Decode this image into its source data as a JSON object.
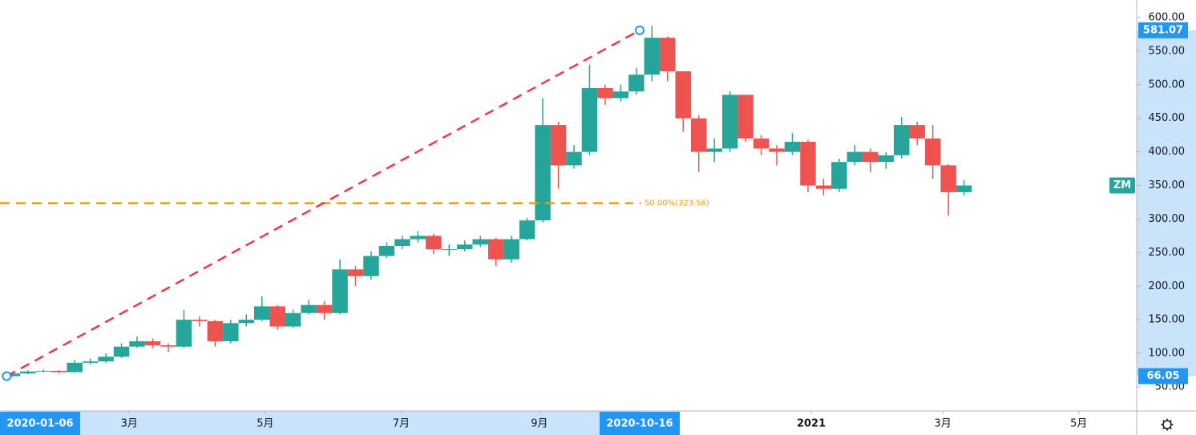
{
  "chart_data": {
    "type": "candlestick",
    "symbol": "ZM",
    "x": [
      "2020-01-06",
      "2020-01-13",
      "2020-01-20",
      "2020-01-27",
      "2020-02-03",
      "2020-02-10",
      "2020-02-17",
      "2020-02-24",
      "2020-03-02",
      "2020-03-09",
      "2020-03-16",
      "2020-03-23",
      "2020-03-30",
      "2020-04-06",
      "2020-04-13",
      "2020-04-20",
      "2020-04-27",
      "2020-05-04",
      "2020-05-11",
      "2020-05-18",
      "2020-05-25",
      "2020-06-01",
      "2020-06-08",
      "2020-06-15",
      "2020-06-22",
      "2020-06-29",
      "2020-07-06",
      "2020-07-13",
      "2020-07-20",
      "2020-07-27",
      "2020-08-03",
      "2020-08-10",
      "2020-08-17",
      "2020-08-24",
      "2020-08-31",
      "2020-09-07",
      "2020-09-14",
      "2020-09-21",
      "2020-09-28",
      "2020-10-05",
      "2020-10-12",
      "2020-10-19",
      "2020-10-26",
      "2020-11-02",
      "2020-11-09",
      "2020-11-16",
      "2020-11-23",
      "2020-11-30",
      "2020-12-07",
      "2020-12-14",
      "2020-12-21",
      "2020-12-28",
      "2021-01-04",
      "2021-01-11",
      "2021-01-18",
      "2021-01-25",
      "2021-02-01",
      "2021-02-08",
      "2021-02-15",
      "2021-02-22",
      "2021-03-01",
      "2021-03-08"
    ],
    "open": [
      66,
      70,
      73,
      74,
      72,
      86,
      88,
      95,
      110,
      118,
      112,
      110,
      150,
      148,
      118,
      145,
      150,
      170,
      140,
      160,
      172,
      160,
      225,
      215,
      245,
      260,
      270,
      275,
      255,
      255,
      262,
      270,
      240,
      270,
      298,
      440,
      380,
      400,
      495,
      480,
      490,
      515,
      570,
      520,
      450,
      400,
      405,
      485,
      420,
      405,
      400,
      415,
      350,
      345,
      385,
      400,
      385,
      395,
      440,
      420,
      380,
      340
    ],
    "high": [
      72,
      75,
      76,
      75,
      90,
      92,
      100,
      115,
      125,
      122,
      115,
      165,
      155,
      150,
      150,
      158,
      185,
      172,
      165,
      180,
      178,
      240,
      230,
      252,
      265,
      275,
      282,
      278,
      262,
      268,
      275,
      272,
      275,
      302,
      480,
      445,
      410,
      530,
      500,
      500,
      525,
      588,
      572,
      520,
      455,
      420,
      490,
      485,
      425,
      410,
      428,
      418,
      360,
      390,
      410,
      405,
      400,
      452,
      445,
      440,
      382,
      358
    ],
    "low": [
      65,
      69,
      72,
      70,
      71,
      84,
      86,
      93,
      108,
      108,
      102,
      108,
      140,
      110,
      115,
      140,
      148,
      135,
      138,
      158,
      150,
      158,
      200,
      210,
      242,
      255,
      265,
      248,
      245,
      252,
      258,
      230,
      235,
      268,
      295,
      345,
      375,
      395,
      470,
      475,
      485,
      505,
      505,
      430,
      370,
      385,
      400,
      415,
      395,
      380,
      395,
      340,
      335,
      340,
      380,
      370,
      375,
      390,
      410,
      360,
      305,
      335
    ],
    "close": [
      70,
      73,
      74,
      72,
      86,
      88,
      95,
      110,
      118,
      112,
      110,
      150,
      148,
      118,
      145,
      150,
      170,
      140,
      160,
      172,
      160,
      225,
      215,
      245,
      260,
      270,
      275,
      255,
      255,
      262,
      270,
      240,
      270,
      298,
      440,
      380,
      400,
      495,
      480,
      490,
      515,
      570,
      520,
      450,
      400,
      405,
      485,
      420,
      405,
      400,
      415,
      350,
      345,
      385,
      400,
      385,
      395,
      440,
      420,
      380,
      340,
      350
    ],
    "up_color": "#26a69a",
    "down_color": "#ef5350",
    "xlim": [
      "2020-01-03",
      "2021-05-27"
    ],
    "xticks": [
      {
        "value": "2020-03-01",
        "label": "3月"
      },
      {
        "value": "2020-05-01",
        "label": "5月"
      },
      {
        "value": "2020-07-01",
        "label": "7月"
      },
      {
        "value": "2020-09-01",
        "label": "9月"
      },
      {
        "value": "2021-01-01",
        "label": "2021"
      },
      {
        "value": "2021-03-01",
        "label": "3月"
      },
      {
        "value": "2021-05-01",
        "label": "5月"
      }
    ],
    "ylim": [
      14.2,
      626.2
    ],
    "yticks": [
      {
        "value": 50,
        "label": "50.00"
      },
      {
        "value": 100,
        "label": "100.00"
      },
      {
        "value": 150,
        "label": "150.00"
      },
      {
        "value": 200,
        "label": "200.00"
      },
      {
        "value": 250,
        "label": "250.00"
      },
      {
        "value": 300,
        "label": "300.00"
      },
      {
        "value": 350,
        "label": "350.00"
      },
      {
        "value": 400,
        "label": "400.00"
      },
      {
        "value": 450,
        "label": "450.00"
      },
      {
        "value": 500,
        "label": "500.00"
      },
      {
        "value": 550,
        "label": "550.00"
      },
      {
        "value": 600,
        "label": "600.00"
      }
    ],
    "trend_line": {
      "color": "#f23645",
      "start": {
        "x": {
          "value": "2020-01-06",
          "label": "2020-01-06"
        },
        "y": {
          "value": 66.05,
          "label": "66.05"
        }
      },
      "end": {
        "x": {
          "value": "2020-10-16",
          "label": "2020-10-16"
        },
        "y": {
          "value": 581.07,
          "label": "581.07"
        }
      }
    },
    "fib_level": {
      "value": 323.56,
      "label": "50.00%(323.56)",
      "color": "#ff9800"
    }
  }
}
